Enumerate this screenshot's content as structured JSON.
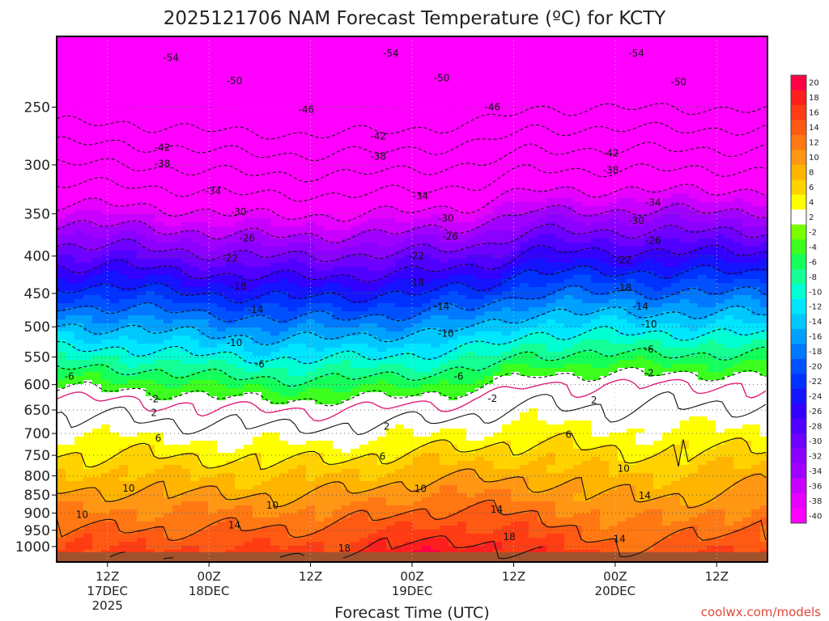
{
  "chart_data": {
    "type": "heatmap",
    "title": "2025121706 NAM Forecast Temperature (ºC) for KCTY",
    "xlabel": "Forecast Time (UTC)",
    "ylabel": "",
    "credit": "coolwx.com/models",
    "y_axis": {
      "scale": "log",
      "inverted": true,
      "units": "hPa",
      "ylim": [
        1050,
        200
      ],
      "ticks": [
        250,
        300,
        350,
        400,
        450,
        500,
        550,
        600,
        650,
        700,
        750,
        800,
        850,
        900,
        950,
        1000
      ]
    },
    "x_axis": {
      "units": "hours after 2025-12-17 06Z",
      "xlim": [
        0,
        84
      ],
      "ticks": [
        {
          "t": 6,
          "lines": [
            "12Z",
            "17DEC",
            "2025"
          ]
        },
        {
          "t": 18,
          "lines": [
            "00Z",
            "18DEC"
          ]
        },
        {
          "t": 30,
          "lines": [
            "12Z"
          ]
        },
        {
          "t": 42,
          "lines": [
            "00Z",
            "19DEC"
          ]
        },
        {
          "t": 54,
          "lines": [
            "12Z"
          ]
        },
        {
          "t": 66,
          "lines": [
            "00Z",
            "20DEC"
          ]
        },
        {
          "t": 78,
          "lines": [
            "12Z"
          ]
        }
      ]
    },
    "colorbar": {
      "levels": [
        20,
        18,
        16,
        14,
        12,
        10,
        8,
        6,
        4,
        2,
        -2,
        -4,
        -6,
        -8,
        -10,
        -12,
        -14,
        -16,
        -18,
        -20,
        -22,
        -24,
        -26,
        -28,
        -30,
        -32,
        -34,
        -36,
        -38,
        -40
      ],
      "colors": [
        "#ff0046",
        "#ff1e1e",
        "#ff3c14",
        "#ff5a14",
        "#ff7814",
        "#ff9614",
        "#ffb400",
        "#ffd200",
        "#ffff00",
        "#ffffff",
        "#78ff00",
        "#3cff1e",
        "#14ff5a",
        "#14ff96",
        "#00ffd2",
        "#00e6ff",
        "#00c8ff",
        "#00a0ff",
        "#0078ff",
        "#0050ff",
        "#0032ff",
        "#1414ff",
        "#3200ff",
        "#5000ff",
        "#6e00ff",
        "#8c00ff",
        "#a000ff",
        "#c800ff",
        "#e600ff",
        "#ff00ff"
      ]
    },
    "contour_labels": [
      {
        "text": "-54",
        "t": 13.5,
        "p": 214
      },
      {
        "text": "-54",
        "t": 39.5,
        "p": 211
      },
      {
        "text": "-54",
        "t": 68.5,
        "p": 211
      },
      {
        "text": "-50",
        "t": 21,
        "p": 230
      },
      {
        "text": "-50",
        "t": 45.5,
        "p": 228
      },
      {
        "text": "-50",
        "t": 73.5,
        "p": 231
      },
      {
        "text": "-46",
        "t": 29.5,
        "p": 252
      },
      {
        "text": "-46",
        "t": 51.5,
        "p": 250
      },
      {
        "text": "-42",
        "t": 12.5,
        "p": 284
      },
      {
        "text": "-42",
        "t": 38,
        "p": 274
      },
      {
        "text": "-42",
        "t": 65.5,
        "p": 289
      },
      {
        "text": "-38",
        "t": 12.5,
        "p": 299
      },
      {
        "text": "-38",
        "t": 38,
        "p": 292
      },
      {
        "text": "-38",
        "t": 65.5,
        "p": 305
      },
      {
        "text": "-34",
        "t": 18.5,
        "p": 326
      },
      {
        "text": "-34",
        "t": 43,
        "p": 331
      },
      {
        "text": "-34",
        "t": 70.5,
        "p": 338
      },
      {
        "text": "-30",
        "t": 21.5,
        "p": 348
      },
      {
        "text": "-30",
        "t": 46,
        "p": 355
      },
      {
        "text": "-30",
        "t": 68.5,
        "p": 358
      },
      {
        "text": "-26",
        "t": 22.5,
        "p": 378
      },
      {
        "text": "-26",
        "t": 46.5,
        "p": 376
      },
      {
        "text": "-26",
        "t": 70.5,
        "p": 381
      },
      {
        "text": "-22",
        "t": 20.5,
        "p": 403
      },
      {
        "text": "-22",
        "t": 42.5,
        "p": 400
      },
      {
        "text": "-22",
        "t": 67,
        "p": 405
      },
      {
        "text": "-18",
        "t": 21.5,
        "p": 440
      },
      {
        "text": "-18",
        "t": 42.5,
        "p": 435
      },
      {
        "text": "-18",
        "t": 67,
        "p": 442
      },
      {
        "text": "-14",
        "t": 23.5,
        "p": 474
      },
      {
        "text": "-14",
        "t": 45.5,
        "p": 469
      },
      {
        "text": "-14",
        "t": 69,
        "p": 469
      },
      {
        "text": "-10",
        "t": 21,
        "p": 526
      },
      {
        "text": "-10",
        "t": 46,
        "p": 511
      },
      {
        "text": "-10",
        "t": 70,
        "p": 496
      },
      {
        "text": "-6",
        "t": 24,
        "p": 563
      },
      {
        "text": "-6",
        "t": 47.5,
        "p": 585
      },
      {
        "text": "-6",
        "t": 70,
        "p": 537
      },
      {
        "text": "-6",
        "t": 1.5,
        "p": 585
      },
      {
        "text": "-2",
        "t": 11.5,
        "p": 628
      },
      {
        "text": "-2",
        "t": 51.5,
        "p": 627
      },
      {
        "text": "-2",
        "t": 70,
        "p": 579
      },
      {
        "text": "2",
        "t": 11.5,
        "p": 656
      },
      {
        "text": "2",
        "t": 39,
        "p": 685
      },
      {
        "text": "2",
        "t": 63.5,
        "p": 630
      },
      {
        "text": "6",
        "t": 12,
        "p": 711
      },
      {
        "text": "6",
        "t": 38.5,
        "p": 753
      },
      {
        "text": "6",
        "t": 60.5,
        "p": 703
      },
      {
        "text": "10",
        "t": 8.5,
        "p": 832
      },
      {
        "text": "10",
        "t": 25.5,
        "p": 878
      },
      {
        "text": "10",
        "t": 43,
        "p": 833
      },
      {
        "text": "10",
        "t": 67,
        "p": 782
      },
      {
        "text": "10",
        "t": 3,
        "p": 905
      },
      {
        "text": "14",
        "t": 21,
        "p": 935
      },
      {
        "text": "14",
        "t": 52,
        "p": 889
      },
      {
        "text": "14",
        "t": 69.5,
        "p": 852
      },
      {
        "text": "14",
        "t": 66.5,
        "p": 976
      },
      {
        "text": "18",
        "t": 34,
        "p": 1006
      },
      {
        "text": "18",
        "t": 53.5,
        "p": 970
      }
    ]
  }
}
